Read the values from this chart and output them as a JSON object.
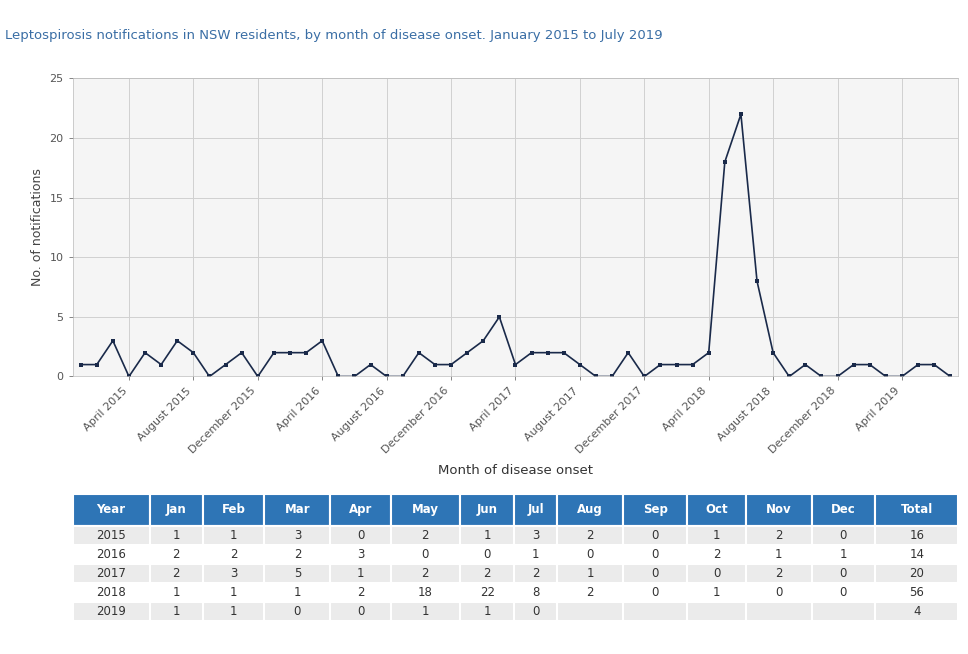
{
  "title": "Leptospirosis notifications in NSW residents, by month of disease onset. January 2015 to July 2019",
  "xlabel": "Month of disease onset",
  "ylabel": "No. of notifications",
  "line_color": "#1a2a4a",
  "background_color": "#ffffff",
  "plot_bg_color": "#f5f5f5",
  "grid_color": "#d0d0d0",
  "ylim": [
    0,
    25
  ],
  "yticks": [
    0,
    5,
    10,
    15,
    20,
    25
  ],
  "monthly_data": {
    "2015": [
      1,
      1,
      3,
      0,
      2,
      1,
      3,
      2,
      0,
      1,
      2,
      0
    ],
    "2016": [
      2,
      2,
      2,
      3,
      0,
      0,
      1,
      0,
      0,
      2,
      1,
      1
    ],
    "2017": [
      2,
      3,
      5,
      1,
      2,
      2,
      2,
      1,
      0,
      0,
      2,
      0
    ],
    "2018": [
      1,
      1,
      1,
      2,
      18,
      22,
      8,
      2,
      0,
      1,
      0,
      0
    ],
    "2019": [
      1,
      1,
      0,
      0,
      1,
      1,
      0,
      null,
      null,
      null,
      null,
      null
    ]
  },
  "table_headers": [
    "Year",
    "Jan",
    "Feb",
    "Mar",
    "Apr",
    "May",
    "Jun",
    "Jul",
    "Aug",
    "Sep",
    "Oct",
    "Nov",
    "Dec",
    "Total"
  ],
  "table_data": [
    [
      "2015",
      "1",
      "1",
      "3",
      "0",
      "2",
      "1",
      "3",
      "2",
      "0",
      "1",
      "2",
      "0",
      "16"
    ],
    [
      "2016",
      "2",
      "2",
      "2",
      "3",
      "0",
      "0",
      "1",
      "0",
      "0",
      "2",
      "1",
      "1",
      "14"
    ],
    [
      "2017",
      "2",
      "3",
      "5",
      "1",
      "2",
      "2",
      "2",
      "1",
      "0",
      "0",
      "2",
      "0",
      "20"
    ],
    [
      "2018",
      "1",
      "1",
      "1",
      "2",
      "18",
      "22",
      "8",
      "2",
      "0",
      "1",
      "0",
      "0",
      "56"
    ],
    [
      "2019",
      "1",
      "1",
      "0",
      "0",
      "1",
      "1",
      "0",
      "",
      "",
      "",
      "",
      "",
      "4"
    ]
  ],
  "header_bg": "#2e75b6",
  "header_text": "#ffffff",
  "row_even_bg": "#ebebeb",
  "row_odd_bg": "#ffffff",
  "tick_labels": [
    "April 2015",
    "August 2015",
    "December 2015",
    "April 2016",
    "August 2016",
    "December 2016",
    "April 2017",
    "August 2017",
    "December 2017",
    "April 2018",
    "August 2018",
    "December 2018",
    "April 2019"
  ],
  "tick_positions": [
    3,
    7,
    11,
    15,
    19,
    23,
    27,
    31,
    35,
    39,
    43,
    47,
    51
  ]
}
